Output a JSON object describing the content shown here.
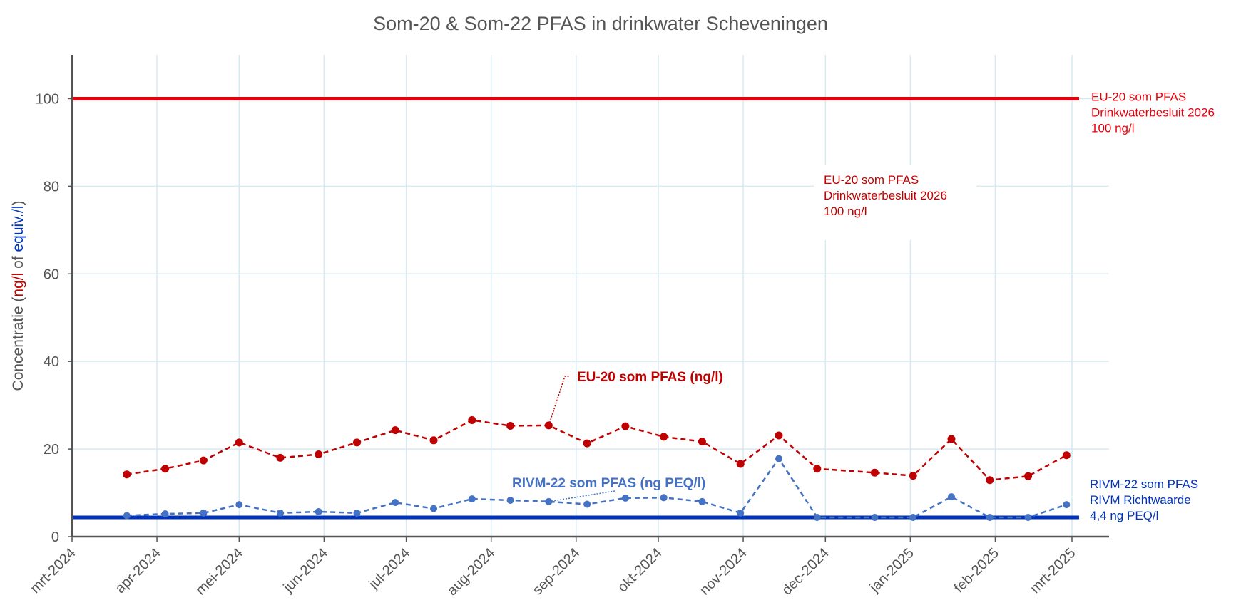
{
  "chart_data": {
    "type": "line",
    "title": "Som-20 & Som-22 PFAS in drinkwater Scheveningen",
    "ylabel_parts": [
      "Concentratie (",
      "ng/l",
      " of ",
      "equiv./l",
      ")"
    ],
    "ylim": [
      0,
      110
    ],
    "yticks": [
      0,
      20,
      40,
      60,
      80,
      100
    ],
    "grid": true,
    "x_range": [
      "2024-03-01",
      "2025-03-01"
    ],
    "x_ticks": [
      {
        "date": "2024-03-01",
        "label": "mrt-2024"
      },
      {
        "date": "2024-04-01",
        "label": "apr-2024"
      },
      {
        "date": "2024-05-01",
        "label": "mei-2024"
      },
      {
        "date": "2024-06-01",
        "label": "jun-2024"
      },
      {
        "date": "2024-07-01",
        "label": "jul-2024"
      },
      {
        "date": "2024-08-01",
        "label": "aug-2024"
      },
      {
        "date": "2024-09-01",
        "label": "sep-2024"
      },
      {
        "date": "2024-10-01",
        "label": "okt-2024"
      },
      {
        "date": "2024-11-01",
        "label": "nov-2024"
      },
      {
        "date": "2024-12-01",
        "label": "dec-2024"
      },
      {
        "date": "2025-01-01",
        "label": "jan-2025"
      },
      {
        "date": "2025-02-01",
        "label": "feb-2025"
      },
      {
        "date": "2025-03-01",
        "label": "mrt-2025"
      }
    ],
    "series": [
      {
        "name": "EU-20 som PFAS (ng/l)",
        "color": "#c00000",
        "x": [
          "2024-03-21",
          "2024-04-04",
          "2024-04-18",
          "2024-05-01",
          "2024-05-16",
          "2024-05-30",
          "2024-06-13",
          "2024-06-27",
          "2024-07-11",
          "2024-07-25",
          "2024-08-08",
          "2024-08-22",
          "2024-09-05",
          "2024-09-19",
          "2024-10-03",
          "2024-10-17",
          "2024-10-31",
          "2024-11-14",
          "2024-11-28",
          "2024-12-19",
          "2025-01-02",
          "2025-01-16",
          "2025-01-30",
          "2025-02-13",
          "2025-02-27"
        ],
        "values": [
          14.2,
          15.5,
          17.4,
          21.5,
          18.0,
          18.8,
          21.5,
          24.3,
          22.0,
          26.6,
          25.3,
          25.4,
          21.3,
          25.2,
          22.8,
          21.7,
          16.6,
          23.1,
          15.5,
          14.6,
          13.9,
          22.3,
          12.9,
          13.8,
          18.6
        ]
      },
      {
        "name": "RIVM-22 som PFAS (ng PEQ/l)",
        "color": "#4472c4",
        "x": [
          "2024-03-21",
          "2024-04-04",
          "2024-04-18",
          "2024-05-01",
          "2024-05-16",
          "2024-05-30",
          "2024-06-13",
          "2024-06-27",
          "2024-07-11",
          "2024-07-25",
          "2024-08-08",
          "2024-08-22",
          "2024-09-05",
          "2024-09-19",
          "2024-10-03",
          "2024-10-17",
          "2024-10-31",
          "2024-11-14",
          "2024-11-28",
          "2024-12-19",
          "2025-01-02",
          "2025-01-16",
          "2025-01-30",
          "2025-02-13",
          "2025-02-27"
        ],
        "values": [
          4.8,
          5.2,
          5.4,
          7.3,
          5.4,
          5.7,
          5.4,
          7.8,
          6.4,
          8.6,
          8.3,
          8.0,
          7.4,
          8.8,
          8.9,
          8.0,
          5.4,
          17.8,
          4.4,
          4.4,
          4.4,
          9.1,
          4.4,
          4.4,
          7.3
        ]
      }
    ],
    "reference_lines": [
      {
        "value": 100,
        "color": "#e8000b",
        "label_lines": [
          "EU-20 som PFAS",
          "Drinkwaterbesluit 2026",
          "100 ng/l"
        ]
      },
      {
        "value": 4.4,
        "color": "#0033bb",
        "label_lines": [
          "RIVM-22 som PFAS",
          "RIVM Richtwaarde",
          "4,4 ng PEQ/l"
        ]
      }
    ],
    "annotations": {
      "floating_box_lines": [
        "EU-20 som PFAS",
        "Drinkwaterbesluit 2026",
        "100 ng/l"
      ],
      "eu_series_label": "EU-20 som PFAS (ng/l)",
      "rivm_series_label": "RIVM-22 som PFAS (ng PEQ/l)"
    },
    "colors": {
      "text": "#555555",
      "grid": "#d6eaf2",
      "axis": "#555555",
      "ylabel_red": "#c00000",
      "ylabel_blue": "#0033bb"
    }
  }
}
